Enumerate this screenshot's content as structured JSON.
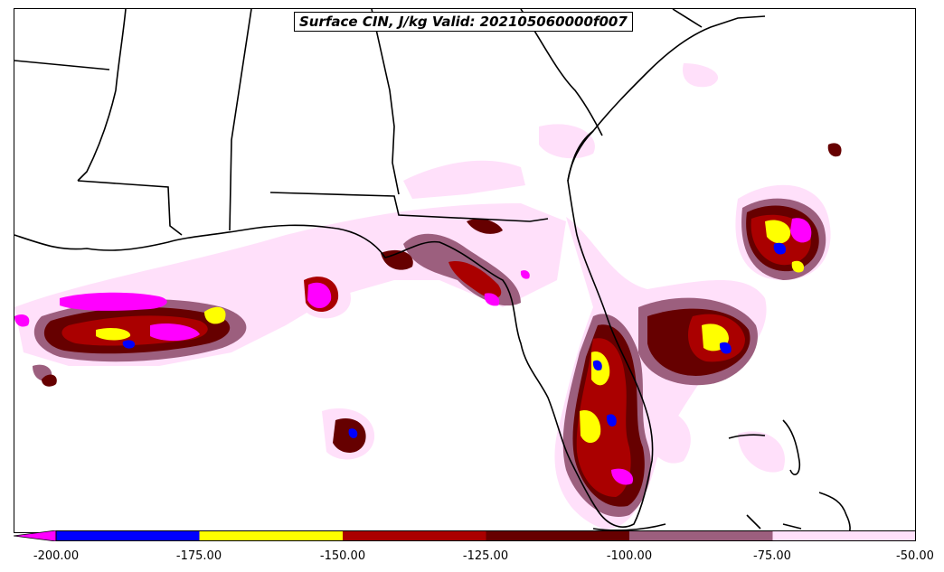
{
  "map": {
    "title": "Surface CIN, J/kg Valid: 202105060000f007",
    "colors": {
      "le_-200": "#ff00ff",
      "-200_-175": "#0000ff",
      "-175_-150": "#ffff00",
      "-150_-125": "#aa0000",
      "-125_-100": "#660000",
      "-100_-75": "#9c5f7e",
      "-75_-50": "#ffe0fa"
    }
  },
  "colorbar": {
    "tick_labels": [
      "-200.00",
      "-175.00",
      "-150.00",
      "-125.00",
      "-100.00",
      "-75.00",
      "-50.00"
    ],
    "bins": [
      {
        "range": "< -200",
        "color": "#ff00ff"
      },
      {
        "range": "-200 to -175",
        "color": "#0000ff"
      },
      {
        "range": "-175 to -150",
        "color": "#ffff00"
      },
      {
        "range": "-150 to -125",
        "color": "#aa0000"
      },
      {
        "range": "-125 to -100",
        "color": "#660000"
      },
      {
        "range": "-100 to -75",
        "color": "#9c5f7e"
      },
      {
        "range": "-75 to -50",
        "color": "#ffe0fa"
      }
    ]
  }
}
